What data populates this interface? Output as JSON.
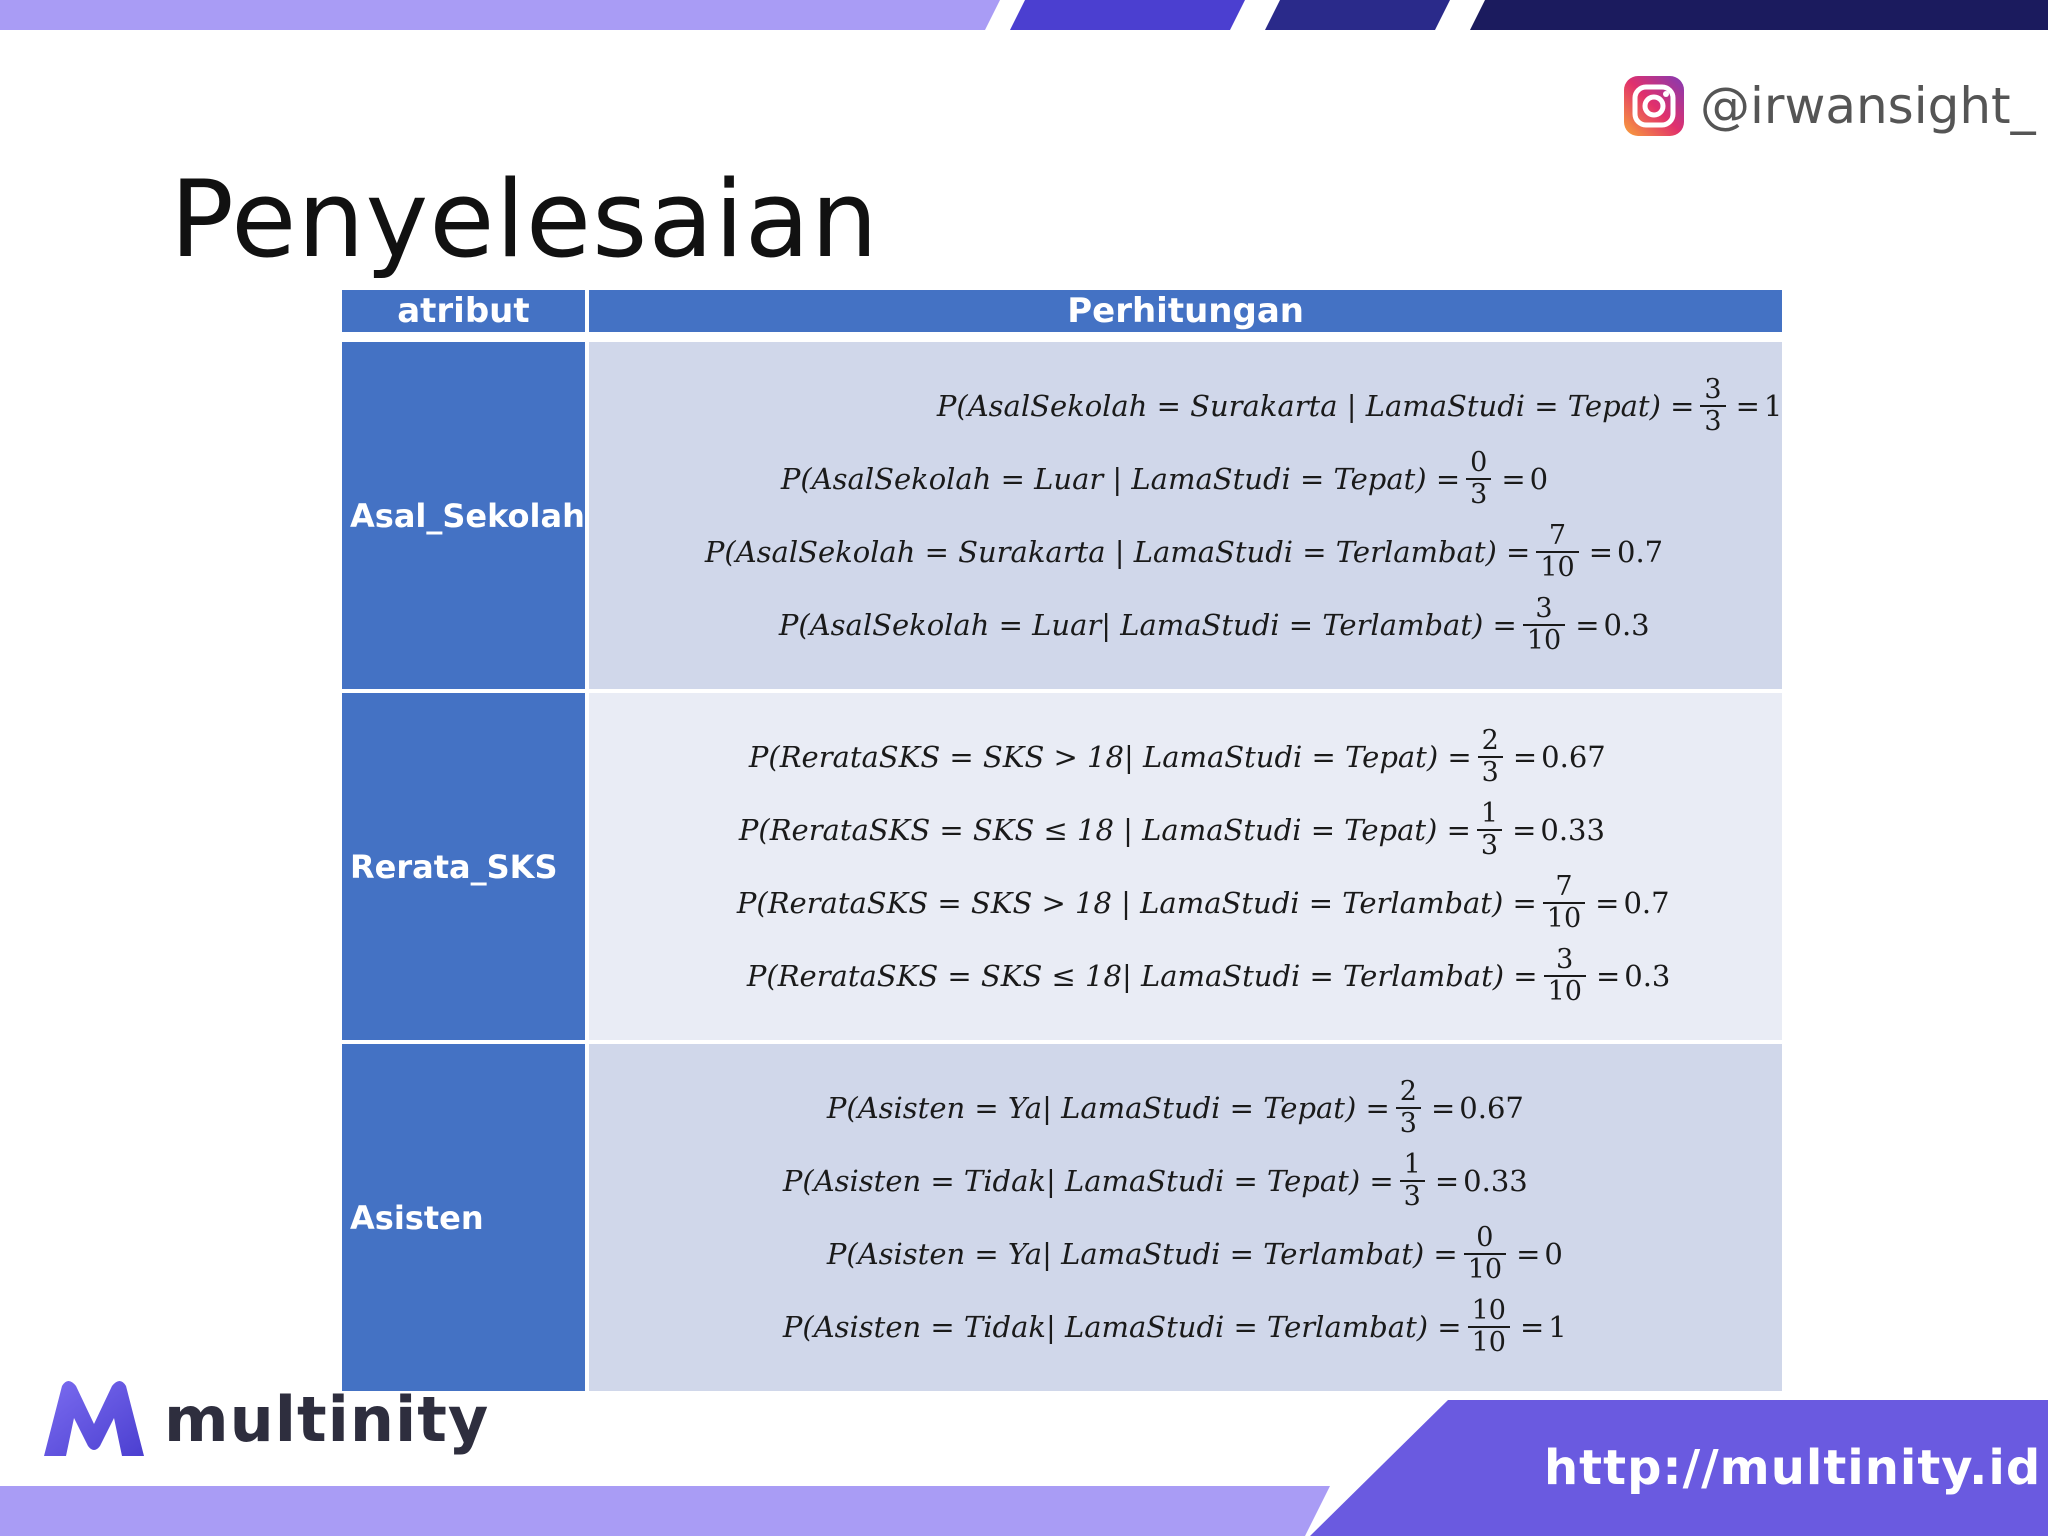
{
  "slide": {
    "title": "Penyelesaian",
    "instagram_handle": "@irwansight_",
    "brand_name": "multinity",
    "url": "http://multinity.id",
    "icons": [
      "instagram-icon",
      "multinity-logo-icon"
    ],
    "colors": {
      "header": "#4472c4",
      "cell_dark": "#d0d7ea",
      "cell_light": "#e9ecf5",
      "accent_purple": "#6a5ae0",
      "accent_navy": "#1b1b5e",
      "accent_light_purple": "#a99cf5"
    }
  },
  "table": {
    "headers": {
      "attribute": "atribut",
      "calculation": "Perhitungan"
    },
    "rows": [
      {
        "attribute": "Asal_Sekolah",
        "equations": [
          {
            "lhs": "P(AsalSekolah = Surakarta | LamaStudi = Tepat) =",
            "num": "3",
            "den": "3",
            "result": "1"
          },
          {
            "lhs": "P(AsalSekolah = Luar | LamaStudi = Tepat) =",
            "num": "0",
            "den": "3",
            "result": "0"
          },
          {
            "lhs": "P(AsalSekolah = Surakarta | LamaStudi = Terlambat) =",
            "num": "7",
            "den": "10",
            "result": "0.7"
          },
          {
            "lhs": "P(AsalSekolah = Luar| LamaStudi = Terlambat) =",
            "num": "3",
            "den": "10",
            "result": "0.3"
          }
        ]
      },
      {
        "attribute": "Rerata_SKS",
        "equations": [
          {
            "lhs": "P(RerataSKS = SKS > 18| LamaStudi = Tepat) =",
            "num": "2",
            "den": "3",
            "result": "0.67"
          },
          {
            "lhs": "P(RerataSKS = SKS ≤ 18 | LamaStudi = Tepat) =",
            "num": "1",
            "den": "3",
            "result": "0.33"
          },
          {
            "lhs": "P(RerataSKS = SKS > 18 | LamaStudi = Terlambat) =",
            "num": "7",
            "den": "10",
            "result": "0.7"
          },
          {
            "lhs": "P(RerataSKS = SKS ≤ 18| LamaStudi = Terlambat) =",
            "num": "3",
            "den": "10",
            "result": "0.3"
          }
        ]
      },
      {
        "attribute": "Asisten",
        "equations": [
          {
            "lhs": "P(Asisten = Ya| LamaStudi = Tepat) =",
            "num": "2",
            "den": "3",
            "result": "0.67"
          },
          {
            "lhs": "P(Asisten = Tidak| LamaStudi = Tepat) =",
            "num": "1",
            "den": "3",
            "result": "0.33"
          },
          {
            "lhs": "P(Asisten = Ya| LamaStudi = Terlambat) =",
            "num": "0",
            "den": "10",
            "result": "0"
          },
          {
            "lhs": "P(Asisten = Tidak| LamaStudi = Terlambat) =",
            "num": "10",
            "den": "10",
            "result": "1"
          }
        ]
      }
    ]
  }
}
